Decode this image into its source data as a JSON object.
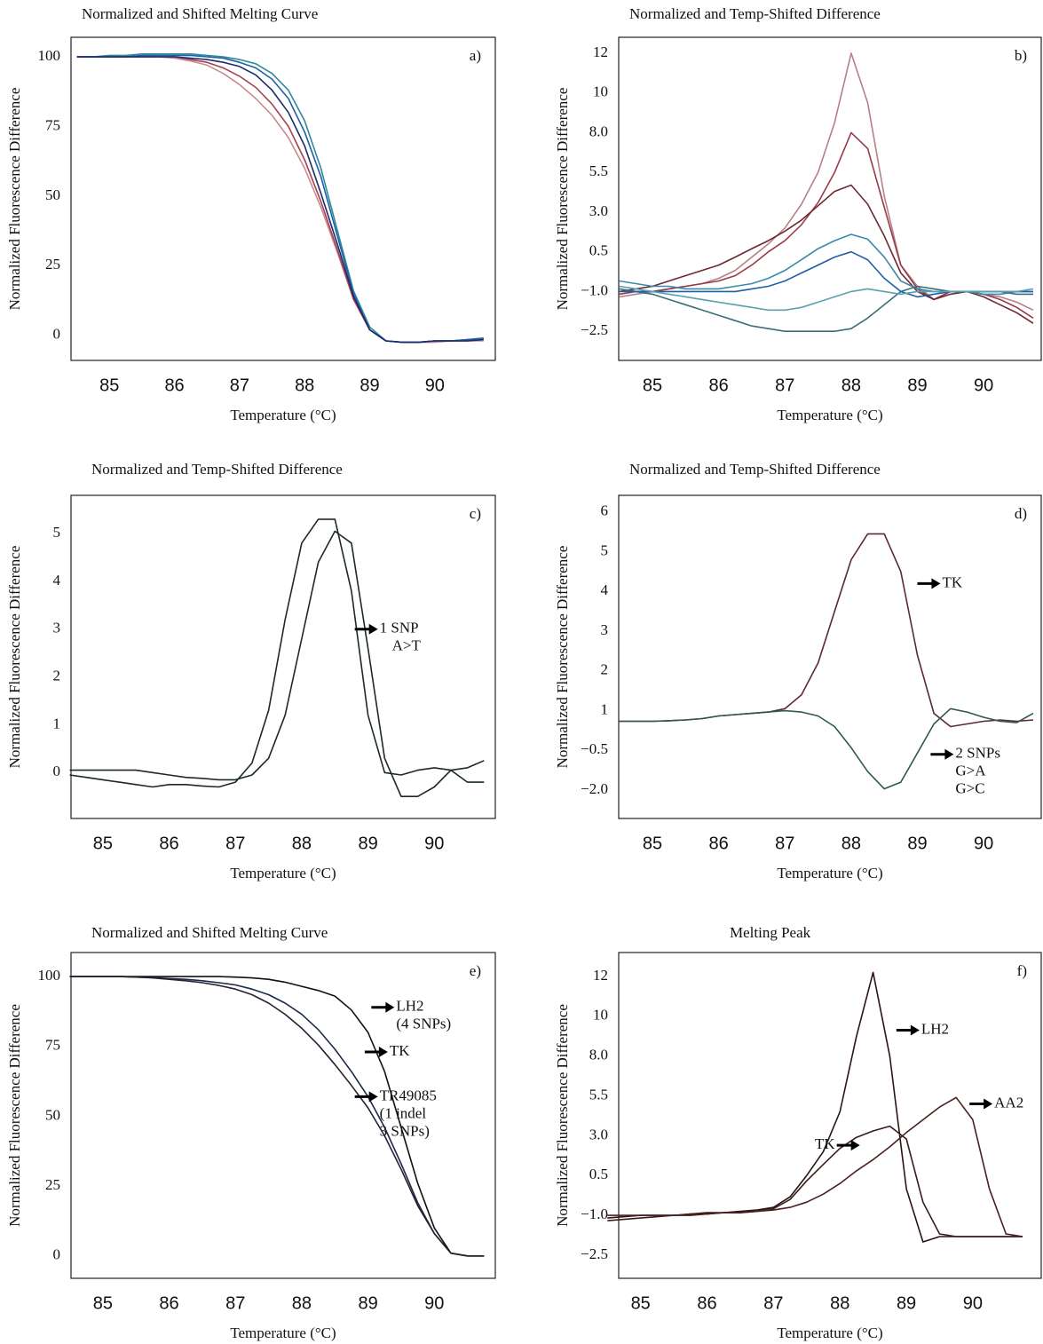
{
  "chart_data": [
    {
      "type": "line",
      "title": "Normalized and Shifted Melting Curve",
      "label": "a)",
      "xlabel": "Temperature (°C)",
      "ylabel": "Normalized Fluorescence Difference",
      "x": [
        84.5,
        84.75,
        85,
        85.25,
        85.5,
        85.75,
        86,
        86.25,
        86.5,
        86.75,
        87,
        87.25,
        87.5,
        87.75,
        88,
        88.25,
        88.5,
        88.75,
        89,
        89.25,
        89.5,
        89.75,
        90,
        90.25,
        90.5,
        90.75
      ],
      "xlim": [
        84.41,
        90.93
      ],
      "xticks": [
        85,
        86,
        87,
        88,
        89,
        90
      ],
      "ylim": [
        -9,
        107
      ],
      "yticks": [
        0,
        25,
        50,
        75,
        100
      ],
      "series": [
        {
          "color": "#c98a8f",
          "values": [
            100,
            100,
            100,
            100,
            100,
            100,
            99.5,
            98.5,
            97,
            94,
            90,
            85,
            79,
            71,
            60,
            46,
            30,
            13,
            2,
            -2,
            -2.5,
            -2.5,
            -2.5,
            -2,
            -2,
            -2
          ]
        },
        {
          "color": "#a8404c",
          "values": [
            100,
            100,
            100,
            100,
            100,
            100,
            100,
            99,
            98,
            96,
            93,
            89,
            83,
            75,
            63,
            48,
            31,
            13,
            2,
            -2,
            -2.5,
            -2.5,
            -2,
            -2,
            -2,
            -1.5
          ]
        },
        {
          "color": "#2e8a9a",
          "values": [
            100,
            100,
            100.5,
            100.5,
            101,
            101,
            101,
            101,
            100.5,
            100,
            99,
            97.5,
            94,
            88,
            77,
            60,
            38,
            16,
            3,
            -2,
            -2.5,
            -2.5,
            -2,
            -2,
            -1.5,
            -1
          ]
        },
        {
          "color": "#1f5fa8",
          "values": [
            100,
            100,
            100,
            100,
            100.5,
            100.5,
            100.5,
            100.5,
            100,
            99.5,
            98,
            96,
            92,
            85,
            73,
            57,
            36,
            15,
            2,
            -2,
            -2.5,
            -2.5,
            -2,
            -2,
            -1.5,
            -1
          ]
        },
        {
          "color": "#1a2a6c",
          "values": [
            100,
            100,
            100,
            100,
            100,
            100,
            100,
            99.5,
            99,
            98,
            96.5,
            93.5,
            88,
            80,
            68,
            51,
            33,
            14,
            2,
            -2,
            -2.5,
            -2.5,
            -2,
            -2,
            -2,
            -1.5
          ]
        }
      ],
      "annotations": []
    },
    {
      "type": "line",
      "title": "Normalized and Temp-Shifted Difference",
      "label": "b)",
      "xlabel": "Temperature (°C)",
      "ylabel": "Normalized Fluorescence Difference",
      "x": [
        84.5,
        84.75,
        85,
        85.25,
        85.5,
        85.75,
        86,
        86.25,
        86.5,
        86.75,
        87,
        87.25,
        87.5,
        87.75,
        88,
        88.25,
        88.5,
        88.75,
        89,
        89.25,
        89.5,
        89.75,
        90,
        90.25,
        90.5,
        90.75
      ],
      "xlim": [
        84.49,
        90.87
      ],
      "xticks": [
        85,
        86,
        87,
        88,
        89,
        90
      ],
      "ylim": [
        -3.6,
        12.8
      ],
      "yticks": [
        {
          "value": -2.5,
          "label": "−2.5"
        },
        {
          "value": -1,
          "label": "−1.0"
        },
        0.5,
        {
          "value": 3,
          "label": "3.0"
        },
        5.5,
        {
          "value": 8,
          "label": "8.0"
        },
        10,
        12
      ],
      "series": [
        {
          "color": "#b68088",
          "values": [
            -1.2,
            -1.1,
            -1,
            -0.9,
            -0.8,
            -0.7,
            -0.5,
            -0.2,
            0.3,
            1,
            2,
            3.5,
            5.5,
            8.5,
            12,
            9.5,
            4,
            0,
            -0.8,
            -1.3,
            -1,
            -1,
            -1.1,
            -1.2,
            -1.4,
            -1.7
          ]
        },
        {
          "color": "#9a3a48",
          "values": [
            -1.1,
            -1,
            -1,
            -0.9,
            -0.8,
            -0.7,
            -0.6,
            -0.4,
            0,
            0.5,
            1.2,
            2.2,
            3.6,
            5.5,
            8,
            7,
            3.3,
            0,
            -0.9,
            -1.3,
            -1,
            -1,
            -1.1,
            -1.3,
            -1.6,
            -2
          ]
        },
        {
          "color": "#6a2a32",
          "values": [
            -1,
            -0.9,
            -0.8,
            -0.6,
            -0.4,
            -0.2,
            0,
            0.3,
            0.7,
            1.2,
            1.8,
            2.5,
            3.4,
            4.3,
            4.7,
            3.5,
            1.5,
            -0.3,
            -1,
            -1.3,
            -1.1,
            -1,
            -1.2,
            -1.5,
            -1.8,
            -2.2
          ]
        },
        {
          "color": "#3a8aa8",
          "values": [
            -0.6,
            -0.7,
            -0.8,
            -0.8,
            -0.9,
            -0.9,
            -0.9,
            -0.8,
            -0.7,
            -0.5,
            -0.2,
            0.2,
            0.7,
            1.2,
            1.6,
            1.3,
            0.3,
            -0.6,
            -0.9,
            -1,
            -1,
            -1,
            -1.1,
            -1.1,
            -1,
            -1
          ]
        },
        {
          "color": "#3d6e78",
          "values": [
            -0.9,
            -1,
            -1.1,
            -1.3,
            -1.5,
            -1.7,
            -1.9,
            -2.1,
            -2.3,
            -2.4,
            -2.5,
            -2.5,
            -2.5,
            -2.5,
            -2.4,
            -2,
            -1.5,
            -1,
            -0.8,
            -0.9,
            -1,
            -1,
            -1,
            -1,
            -1.1,
            -1.1
          ]
        },
        {
          "color": "#1f5fa8",
          "values": [
            -1,
            -1,
            -1,
            -1,
            -1,
            -1,
            -1,
            -1,
            -0.9,
            -0.8,
            -0.6,
            -0.3,
            0,
            0.3,
            0.5,
            0.2,
            -0.5,
            -1,
            -1.2,
            -1.1,
            -1,
            -1,
            -1,
            -1,
            -1,
            -1
          ]
        },
        {
          "color": "#5aa0b0",
          "values": [
            -0.8,
            -0.9,
            -1,
            -1.1,
            -1.2,
            -1.3,
            -1.4,
            -1.5,
            -1.6,
            -1.7,
            -1.7,
            -1.6,
            -1.4,
            -1.2,
            -1,
            -0.9,
            -1,
            -1.1,
            -1,
            -1,
            -1,
            -1,
            -1,
            -1,
            -1,
            -0.9
          ]
        }
      ],
      "annotations": []
    },
    {
      "type": "line",
      "title": "Normalized and Temp-Shifted Difference",
      "label": "c)",
      "xlabel": "Temperature (°C)",
      "ylabel": "Normalized Fluorescence Difference",
      "x": [
        84.5,
        84.75,
        85,
        85.25,
        85.5,
        85.75,
        86,
        86.25,
        86.5,
        86.75,
        87,
        87.25,
        87.5,
        87.75,
        88,
        88.25,
        88.5,
        88.75,
        89,
        89.25,
        89.5,
        89.75,
        90,
        90.25,
        90.5,
        90.75
      ],
      "xlim": [
        84.52,
        90.92
      ],
      "xticks": [
        85,
        86,
        87,
        88,
        89,
        90
      ],
      "ylim": [
        -0.96,
        5.8
      ],
      "yticks": [
        0,
        1,
        2,
        3,
        4,
        5
      ],
      "series": [
        {
          "color": "#1c2a24",
          "values": [
            -0.05,
            -0.1,
            -0.15,
            -0.2,
            -0.25,
            -0.3,
            -0.25,
            -0.25,
            -0.28,
            -0.3,
            -0.2,
            0.2,
            1.3,
            3.2,
            4.8,
            5.3,
            5.3,
            3.8,
            1.2,
            0,
            -0.05,
            0.05,
            0.1,
            0.05,
            0.1,
            0.25
          ]
        },
        {
          "color": "#1c2a24",
          "values": [
            0.05,
            0.05,
            0.05,
            0.05,
            0.05,
            0,
            -0.05,
            -0.1,
            -0.12,
            -0.15,
            -0.15,
            -0.05,
            0.3,
            1.2,
            2.8,
            4.4,
            5.05,
            4.8,
            2.6,
            0.3,
            -0.5,
            -0.5,
            -0.3,
            0.05,
            -0.2,
            -0.2
          ]
        }
      ],
      "annotations": [
        {
          "text": [
            "1 SNP",
            "A>T"
          ],
          "x": 88.8,
          "y": 3
        }
      ]
    },
    {
      "type": "line",
      "title": "Normalized and Temp-Shifted Difference",
      "label": "d)",
      "xlabel": "Temperature (°C)",
      "ylabel": "Normalized Fluorescence Difference",
      "x": [
        84.5,
        84.75,
        85,
        85.25,
        85.5,
        85.75,
        86,
        86.25,
        86.5,
        86.75,
        87,
        87.25,
        87.5,
        87.75,
        88,
        88.25,
        88.5,
        88.75,
        89,
        89.25,
        89.5,
        89.75,
        90,
        90.25,
        90.5,
        90.75
      ],
      "xlim": [
        84.49,
        90.87
      ],
      "xticks": [
        85,
        86,
        87,
        88,
        89,
        90
      ],
      "ylim": [
        -3.07,
        6.42
      ],
      "yticks": [
        {
          "value": -2,
          "label": "−2.0"
        },
        {
          "value": -0.5,
          "label": "−0.5"
        },
        1,
        2,
        3,
        4,
        5,
        6
      ],
      "series": [
        {
          "color": "#5a2a2e",
          "values": [
            0.6,
            0.6,
            0.6,
            0.62,
            0.65,
            0.7,
            0.8,
            0.85,
            0.9,
            0.95,
            1.05,
            1.4,
            2.2,
            3.5,
            4.8,
            5.45,
            5.45,
            4.5,
            2.4,
            0.9,
            0.4,
            0.5,
            0.6,
            0.65,
            0.6,
            0.65
          ]
        },
        {
          "color": "#2e5a48",
          "values": [
            0.6,
            0.6,
            0.6,
            0.62,
            0.65,
            0.7,
            0.8,
            0.85,
            0.9,
            0.95,
            1,
            0.95,
            0.8,
            0.4,
            -0.4,
            -1.3,
            -1.95,
            -1.7,
            -0.6,
            0.5,
            1.05,
            0.95,
            0.75,
            0.6,
            0.55,
            0.9
          ]
        }
      ],
      "annotations": [
        {
          "text": [
            "TK"
          ],
          "x": 89.0,
          "y": 4.2
        },
        {
          "text": [
            "2 SNPs",
            "G>A",
            "G>C"
          ],
          "x": 89.2,
          "y": -0.65
        }
      ]
    },
    {
      "type": "line",
      "title": "Normalized and Shifted Melting Curve",
      "label": "e)",
      "xlabel": "Temperature (°C)",
      "ylabel": "Normalized Fluorescence Difference",
      "x": [
        84.5,
        84.75,
        85,
        85.25,
        85.5,
        85.75,
        86,
        86.25,
        86.5,
        86.75,
        87,
        87.25,
        87.5,
        87.75,
        88,
        88.25,
        88.5,
        88.75,
        89,
        89.25,
        89.5,
        89.75,
        90,
        90.25,
        90.5,
        90.75
      ],
      "xlim": [
        84.52,
        90.92
      ],
      "xticks": [
        85,
        86,
        87,
        88,
        89,
        90
      ],
      "ylim": [
        -8,
        108.6
      ],
      "yticks": [
        0,
        25,
        50,
        75,
        100
      ],
      "series": [
        {
          "color": "#111111",
          "values": [
            100,
            100,
            100,
            100,
            100,
            100,
            100,
            100,
            100,
            100,
            99.8,
            99.5,
            99,
            98,
            96.5,
            95,
            93,
            88,
            80,
            66,
            46,
            26,
            10,
            1,
            0,
            0
          ]
        },
        {
          "color": "#1a2a4c",
          "values": [
            100,
            100,
            100,
            100,
            99.8,
            99.6,
            99.3,
            99,
            98.5,
            97.8,
            97,
            95.5,
            93.5,
            90.5,
            86.5,
            81,
            74,
            66,
            57,
            46,
            33,
            19,
            8,
            1,
            0,
            0
          ]
        },
        {
          "color": "#2a2030",
          "values": [
            100,
            100,
            100,
            100,
            99.8,
            99.5,
            99,
            98.5,
            97.8,
            96.8,
            95.5,
            93.5,
            90.5,
            86.5,
            81.5,
            75.5,
            68.5,
            61,
            53,
            43,
            31,
            18,
            8,
            1,
            0,
            0
          ]
        }
      ],
      "annotations": [
        {
          "text": [
            "LH2",
            "(4 SNPs)"
          ],
          "x": 89.05,
          "y": 89
        },
        {
          "text": [
            "TK"
          ],
          "x": 88.95,
          "y": 73
        },
        {
          "text": [
            "TR49085",
            "(1 indel",
            "3 SNPs)"
          ],
          "x": 88.8,
          "y": 57
        }
      ]
    },
    {
      "type": "line",
      "title": "Melting  Peak",
      "label": "f)",
      "xlabel": "Temperature (°C)",
      "ylabel": "Normalized Fluorescence Difference",
      "x": [
        84.5,
        84.75,
        85,
        85.25,
        85.5,
        85.75,
        86,
        86.25,
        86.5,
        86.75,
        87,
        87.25,
        87.5,
        87.75,
        88,
        88.25,
        88.5,
        88.75,
        89,
        89.25,
        89.5,
        89.75,
        90,
        90.25,
        90.5,
        90.75
      ],
      "xlim": [
        84.67,
        91.03
      ],
      "xticks": [
        85,
        86,
        87,
        88,
        89,
        90
      ],
      "ylim": [
        -3.37,
        13.2
      ],
      "yticks": [
        {
          "value": -2.5,
          "label": "−2.5"
        },
        {
          "value": -1,
          "label": "−1.0"
        },
        0.5,
        {
          "value": 3,
          "label": "3.0"
        },
        5.5,
        {
          "value": 8,
          "label": "8.0"
        },
        10,
        12
      ],
      "series": [
        {
          "color": "#2a1414",
          "values": [
            -1.1,
            -1.05,
            -1,
            -1,
            -1,
            -0.95,
            -0.9,
            -0.9,
            -0.85,
            -0.8,
            -0.7,
            -0.3,
            0.5,
            2,
            4.5,
            9,
            12.2,
            8,
            0,
            -2,
            -1.8,
            -1.8,
            -1.8,
            -1.8,
            -1.8,
            -1.8
          ]
        },
        {
          "color": "#3a1c1c",
          "values": [
            -1.2,
            -1.15,
            -1.1,
            -1.05,
            -1,
            -1,
            -0.95,
            -0.9,
            -0.9,
            -0.85,
            -0.75,
            -0.4,
            0.3,
            1.2,
            2.2,
            2.9,
            3.3,
            3.6,
            2.8,
            -0.5,
            -1.7,
            -1.8,
            -1.8,
            -1.8,
            -1.8,
            -1.8
          ]
        },
        {
          "color": "#4a2020",
          "values": [
            -1,
            -1,
            -1,
            -1,
            -1,
            -0.95,
            -0.95,
            -0.9,
            -0.9,
            -0.85,
            -0.8,
            -0.7,
            -0.5,
            -0.2,
            0.2,
            0.8,
            1.5,
            2.3,
            3.2,
            4,
            4.8,
            5.4,
            4,
            0,
            -1.7,
            -1.8
          ]
        }
      ],
      "annotations": [
        {
          "text": [
            "LH2"
          ],
          "x": 88.85,
          "y": 9.3
        },
        {
          "text": [
            "AA2"
          ],
          "x": 89.95,
          "y": 5.0
        },
        {
          "text": [
            "TK"
          ],
          "x": 88.3,
          "y": 2.4
        }
      ]
    }
  ]
}
